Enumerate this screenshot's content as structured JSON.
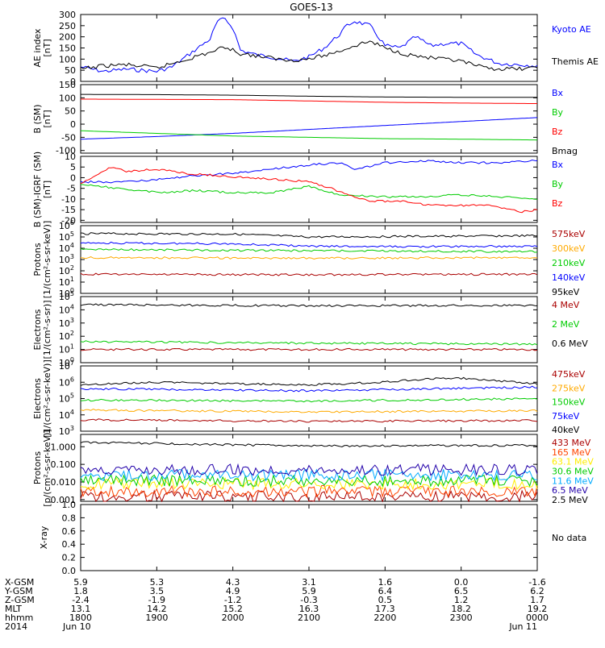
{
  "title": "GOES-13",
  "nodata_text": "No data",
  "orbit": {
    "labels": [
      "X-GSM",
      "Y-GSM",
      "Z-GSM",
      "MLT",
      "hhmm",
      "2014"
    ],
    "hours": [
      18,
      19,
      20,
      21,
      22,
      23,
      24
    ],
    "rows": [
      [
        "5.9",
        "5.3",
        "4.3",
        "3.1",
        "1.6",
        "0.0",
        "-1.6"
      ],
      [
        "1.8",
        "3.5",
        "4.9",
        "5.9",
        "6.4",
        "6.5",
        "6.2"
      ],
      [
        "-2.4",
        "-1.9",
        "-1.2",
        "-0.3",
        "0.5",
        "1.2",
        "1.7"
      ],
      [
        "13.1",
        "14.2",
        "15.2",
        "16.3",
        "17.3",
        "18.2",
        "19.2"
      ],
      [
        "1800",
        "1900",
        "2000",
        "2100",
        "2200",
        "2300",
        "0000"
      ],
      [
        "Jun 10",
        "",
        "",
        "",
        "",
        "",
        "Jun 11"
      ]
    ]
  },
  "chart_data": [
    {
      "type": "line",
      "ylabel": "AE index\n[nT]",
      "scale": "linear",
      "ylim": [
        0,
        300
      ],
      "ticks": [
        0,
        50,
        100,
        150,
        200,
        250,
        300
      ],
      "series": [
        {
          "name": "Kyoto AE",
          "color": "#0000ff",
          "points": [
            [
              18.0,
              65
            ],
            [
              18.3,
              45
            ],
            [
              18.6,
              55
            ],
            [
              19.0,
              45
            ],
            [
              19.2,
              65
            ],
            [
              19.5,
              140
            ],
            [
              19.7,
              190
            ],
            [
              19.8,
              270
            ],
            [
              19.9,
              280
            ],
            [
              20.0,
              240
            ],
            [
              20.1,
              140
            ],
            [
              20.3,
              120
            ],
            [
              20.5,
              110
            ],
            [
              20.8,
              90
            ],
            [
              21.0,
              110
            ],
            [
              21.2,
              150
            ],
            [
              21.4,
              210
            ],
            [
              21.5,
              250
            ],
            [
              21.6,
              270
            ],
            [
              21.8,
              250
            ],
            [
              22.0,
              160
            ],
            [
              22.2,
              150
            ],
            [
              22.4,
              200
            ],
            [
              22.6,
              160
            ],
            [
              22.8,
              170
            ],
            [
              23.0,
              170
            ],
            [
              23.2,
              120
            ],
            [
              23.5,
              80
            ],
            [
              23.8,
              75
            ],
            [
              24.0,
              70
            ]
          ]
        },
        {
          "name": "Themis AE",
          "color": "#000000",
          "points": [
            [
              18.0,
              55
            ],
            [
              18.3,
              70
            ],
            [
              18.6,
              75
            ],
            [
              19.0,
              60
            ],
            [
              19.4,
              100
            ],
            [
              19.7,
              130
            ],
            [
              19.9,
              155
            ],
            [
              20.1,
              125
            ],
            [
              20.4,
              110
            ],
            [
              20.7,
              95
            ],
            [
              21.0,
              100
            ],
            [
              21.3,
              125
            ],
            [
              21.6,
              160
            ],
            [
              21.8,
              180
            ],
            [
              22.0,
              150
            ],
            [
              22.3,
              120
            ],
            [
              22.6,
              105
            ],
            [
              23.0,
              90
            ],
            [
              23.3,
              60
            ],
            [
              23.6,
              55
            ],
            [
              24.0,
              60
            ]
          ]
        }
      ]
    },
    {
      "type": "line",
      "ylabel": "B (SM)\n[nT]",
      "scale": "linear",
      "ylim": [
        -110,
        150
      ],
      "ticks": [
        -100,
        -50,
        0,
        50,
        100,
        150
      ],
      "series": [
        {
          "name": "Bx",
          "color": "#0000ff",
          "points": [
            [
              18,
              -57
            ],
            [
              19,
              -47
            ],
            [
              20,
              -35
            ],
            [
              21,
              -20
            ],
            [
              22,
              -5
            ],
            [
              23,
              10
            ],
            [
              24,
              25
            ]
          ]
        },
        {
          "name": "By",
          "color": "#00cc00",
          "points": [
            [
              18,
              -25
            ],
            [
              19,
              -35
            ],
            [
              20,
              -45
            ],
            [
              21,
              -50
            ],
            [
              22,
              -55
            ],
            [
              23,
              -57
            ],
            [
              24,
              -60
            ]
          ]
        },
        {
          "name": "Bz",
          "color": "#ff0000",
          "points": [
            [
              18,
              95
            ],
            [
              19,
              94
            ],
            [
              20,
              93
            ],
            [
              21,
              88
            ],
            [
              22,
              83
            ],
            [
              23,
              80
            ],
            [
              24,
              78
            ]
          ]
        },
        {
          "name": "Bmag",
          "color": "#000000",
          "points": [
            [
              18,
              113
            ],
            [
              19,
              112
            ],
            [
              20,
              110
            ],
            [
              21,
              106
            ],
            [
              22,
              103
            ],
            [
              23,
              102
            ],
            [
              24,
              102
            ]
          ]
        }
      ]
    },
    {
      "type": "line",
      "ylabel": "B (SM)-IGRF (SM)\n[nT]",
      "scale": "linear",
      "ylim": [
        -21,
        10
      ],
      "ticks": [
        -20,
        -15,
        -10,
        -5,
        0,
        5,
        10
      ],
      "series": [
        {
          "name": "Bx",
          "color": "#0000ff",
          "points": [
            [
              18.0,
              -2
            ],
            [
              18.5,
              -2
            ],
            [
              19.0,
              -1
            ],
            [
              19.5,
              1
            ],
            [
              20.0,
              2
            ],
            [
              20.5,
              4
            ],
            [
              21.0,
              6
            ],
            [
              21.4,
              7
            ],
            [
              21.6,
              4
            ],
            [
              22.0,
              7
            ],
            [
              22.5,
              8
            ],
            [
              23.0,
              7
            ],
            [
              23.5,
              7
            ],
            [
              24.0,
              8
            ]
          ]
        },
        {
          "name": "By",
          "color": "#00cc00",
          "points": [
            [
              18.0,
              -3
            ],
            [
              18.5,
              -5
            ],
            [
              19.0,
              -7
            ],
            [
              19.5,
              -6
            ],
            [
              20.0,
              -7
            ],
            [
              20.5,
              -7
            ],
            [
              21.0,
              -4
            ],
            [
              21.4,
              -8
            ],
            [
              22.0,
              -9
            ],
            [
              22.5,
              -9
            ],
            [
              23.0,
              -8
            ],
            [
              23.5,
              -9
            ],
            [
              24.0,
              -10
            ]
          ]
        },
        {
          "name": "Bz",
          "color": "#ff0000",
          "points": [
            [
              18.0,
              -3
            ],
            [
              18.4,
              5
            ],
            [
              18.6,
              3
            ],
            [
              19.0,
              4
            ],
            [
              19.4,
              2
            ],
            [
              19.8,
              1
            ],
            [
              20.2,
              0
            ],
            [
              20.7,
              -1
            ],
            [
              21.0,
              -2
            ],
            [
              21.3,
              -5
            ],
            [
              21.5,
              -8
            ],
            [
              21.8,
              -11
            ],
            [
              22.2,
              -11
            ],
            [
              22.6,
              -13
            ],
            [
              23.0,
              -13
            ],
            [
              23.4,
              -13
            ],
            [
              23.8,
              -16
            ],
            [
              24.0,
              -15
            ]
          ]
        }
      ]
    },
    {
      "type": "line",
      "ylabel": "Protons\n[1/(cm²-s-sr-keV)]",
      "scale": "log",
      "ylim": [
        1,
        1000000
      ],
      "ticks": [
        1,
        10,
        100,
        1000,
        10000,
        100000,
        1000000
      ],
      "series": [
        {
          "name": "575keV",
          "color": "#aa0000",
          "points": [
            [
              18,
              50
            ],
            [
              21,
              45
            ],
            [
              24,
              50
            ]
          ]
        },
        {
          "name": "300keV",
          "color": "#ffaa00",
          "points": [
            [
              18,
              1500
            ],
            [
              21,
              1300
            ],
            [
              24,
              1500
            ]
          ]
        },
        {
          "name": "210keV",
          "color": "#00cc00",
          "points": [
            [
              18,
              8000
            ],
            [
              21,
              6000
            ],
            [
              24,
              5000
            ]
          ]
        },
        {
          "name": "140keV",
          "color": "#0000ff",
          "points": [
            [
              18,
              30000
            ],
            [
              20,
              25000
            ],
            [
              21,
              15000
            ],
            [
              22,
              14000
            ],
            [
              24,
              15000
            ]
          ]
        },
        {
          "name": "95keV",
          "color": "#000000",
          "points": [
            [
              18,
              200000
            ],
            [
              20,
              180000
            ],
            [
              21,
              100000
            ],
            [
              22,
              110000
            ],
            [
              24,
              130000
            ]
          ]
        }
      ]
    },
    {
      "type": "line",
      "ylabel": "Electrons\n[1/(cm²-s-sr)]",
      "scale": "log",
      "ylim": [
        1,
        100000
      ],
      "ticks": [
        1,
        10,
        100,
        1000,
        10000,
        100000
      ],
      "series": [
        {
          "name": "4 MeV",
          "color": "#aa0000",
          "points": [
            [
              18,
              10
            ],
            [
              21,
              10
            ],
            [
              24,
              10
            ]
          ]
        },
        {
          "name": "2 MeV",
          "color": "#00cc00",
          "points": [
            [
              18,
              40
            ],
            [
              21,
              30
            ],
            [
              24,
              25
            ]
          ]
        },
        {
          "name": "0.6 MeV",
          "color": "#000000",
          "points": [
            [
              18,
              25000
            ],
            [
              21,
              20000
            ],
            [
              24,
              22000
            ]
          ]
        }
      ]
    },
    {
      "type": "line",
      "ylabel": "Electrons\n[1/(cm²-s-sr-keV)]",
      "scale": "log",
      "ylim": [
        1000,
        10000000
      ],
      "ticks": [
        1000,
        10000,
        100000,
        1000000,
        10000000
      ],
      "series": [
        {
          "name": "475keV",
          "color": "#aa0000",
          "points": [
            [
              18,
              5000
            ],
            [
              21,
              4000
            ],
            [
              24,
              4500
            ]
          ]
        },
        {
          "name": "275keV",
          "color": "#ffaa00",
          "points": [
            [
              18,
              20000
            ],
            [
              21,
              15000
            ],
            [
              24,
              18000
            ]
          ]
        },
        {
          "name": "150keV",
          "color": "#00cc00",
          "points": [
            [
              18,
              80000
            ],
            [
              21,
              70000
            ],
            [
              24,
              100000
            ]
          ]
        },
        {
          "name": "75keV",
          "color": "#0000ff",
          "points": [
            [
              18,
              400000
            ],
            [
              21,
              300000
            ],
            [
              24,
              500000
            ]
          ]
        },
        {
          "name": "40keV",
          "color": "#000000",
          "points": [
            [
              18,
              700000
            ],
            [
              19,
              1000000
            ],
            [
              20,
              800000
            ],
            [
              21,
              700000
            ],
            [
              22,
              1000000
            ],
            [
              22.7,
              1800000
            ],
            [
              23,
              1800000
            ],
            [
              24,
              800000
            ]
          ]
        }
      ]
    },
    {
      "type": "line",
      "ylabel": "Protons\n[p/(cm²-s-sr-keV)]",
      "scale": "log",
      "ylim": [
        0.0008,
        5
      ],
      "ticks": [
        0.001,
        0.01,
        0.1,
        1
      ],
      "tick_labels": [
        "0.001",
        "0.010",
        "0.100",
        "1.000"
      ],
      "series": [
        {
          "name": "433 MeV",
          "color": "#aa0000",
          "points": [
            [
              18,
              0.0015
            ],
            [
              24,
              0.0015
            ]
          ]
        },
        {
          "name": "165 MeV",
          "color": "#ff4400",
          "points": [
            [
              18,
              0.003
            ],
            [
              24,
              0.003
            ]
          ]
        },
        {
          "name": "63.1 MeV",
          "color": "#ffee00",
          "points": [
            [
              18,
              0.008
            ],
            [
              24,
              0.008
            ]
          ]
        },
        {
          "name": "30.6 MeV",
          "color": "#00cc00",
          "points": [
            [
              18,
              0.012
            ],
            [
              24,
              0.012
            ]
          ]
        },
        {
          "name": "11.6 MeV",
          "color": "#00aaff",
          "points": [
            [
              18,
              0.025
            ],
            [
              24,
              0.025
            ]
          ]
        },
        {
          "name": "6.5 MeV",
          "color": "#2200aa",
          "points": [
            [
              18,
              0.05
            ],
            [
              24,
              0.05
            ]
          ]
        },
        {
          "name": "2.5 MeV",
          "color": "#000000",
          "points": [
            [
              18,
              1.8
            ],
            [
              21,
              1.1
            ],
            [
              24,
              1.2
            ]
          ]
        }
      ]
    },
    {
      "type": "line",
      "ylabel": "X-ray",
      "scale": "linear",
      "ylim": [
        0,
        1
      ],
      "ticks": [
        0,
        0.2,
        0.4,
        0.6,
        0.8,
        1.0
      ],
      "tick_labels": [
        "0.0",
        "0.2",
        "0.4",
        "0.6",
        "0.8",
        "1.0"
      ],
      "series": []
    }
  ]
}
